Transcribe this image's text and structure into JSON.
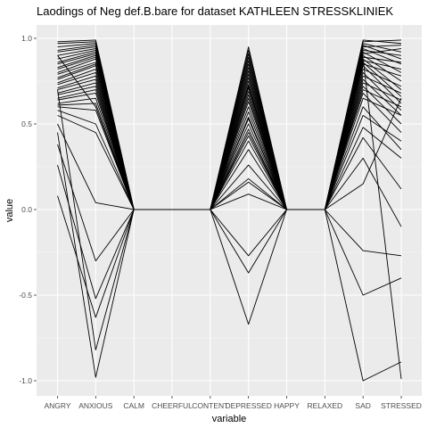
{
  "chart_data": {
    "type": "line",
    "title": "Laodings of Neg def.B.bare for dataset KATHLEEN STRESSKLINIEK",
    "xlabel": "variable",
    "ylabel": "value",
    "categories": [
      "ANGRY",
      "ANXIOUS",
      "CALM",
      "CHEERFUL",
      "CONTENT",
      "DEPRESSED",
      "HAPPY",
      "RELAXED",
      "SAD",
      "STRESSED"
    ],
    "ylim": [
      -1.0,
      1.0
    ],
    "yticks": [
      {
        "value": -1.0,
        "label": "-1.0"
      },
      {
        "value": -0.5,
        "label": "-0.5"
      },
      {
        "value": 0.0,
        "label": "0.0"
      },
      {
        "value": 0.5,
        "label": "0.5"
      },
      {
        "value": 1.0,
        "label": "1.0"
      }
    ],
    "grid": true,
    "line_color": "#000000",
    "series": [
      {
        "values": [
          0.98,
          0.99,
          0,
          0,
          0,
          0.95,
          0,
          0,
          0.99,
          0.97
        ]
      },
      {
        "values": [
          0.97,
          0.98,
          0,
          0,
          0,
          0.93,
          0,
          0,
          0.98,
          0.99
        ]
      },
      {
        "values": [
          0.95,
          0.97,
          0,
          0,
          0,
          0.91,
          0,
          0,
          0.97,
          0.92
        ]
      },
      {
        "values": [
          0.93,
          0.96,
          0,
          0,
          0,
          0.89,
          0,
          0,
          0.96,
          0.88
        ]
      },
      {
        "values": [
          0.92,
          0.95,
          0,
          0,
          0,
          0.87,
          0,
          0,
          0.95,
          0.96
        ]
      },
      {
        "values": [
          0.9,
          0.94,
          0,
          0,
          0,
          0.85,
          0,
          0,
          0.94,
          0.85
        ]
      },
      {
        "values": [
          0.88,
          0.93,
          0,
          0,
          0,
          0.83,
          0,
          0,
          0.93,
          0.9
        ]
      },
      {
        "values": [
          0.86,
          0.92,
          0,
          0,
          0,
          0.81,
          0,
          0,
          0.92,
          0.8
        ]
      },
      {
        "values": [
          0.85,
          0.91,
          0,
          0,
          0,
          0.79,
          0,
          0,
          0.91,
          0.94
        ]
      },
      {
        "values": [
          0.83,
          0.9,
          0,
          0,
          0,
          0.77,
          0,
          0,
          0.9,
          0.75
        ]
      },
      {
        "values": [
          0.82,
          0.89,
          0,
          0,
          0,
          0.75,
          0,
          0,
          0.89,
          0.86
        ]
      },
      {
        "values": [
          0.8,
          0.88,
          0,
          0,
          0,
          0.73,
          0,
          0,
          0.88,
          0.7
        ]
      },
      {
        "values": [
          0.79,
          0.86,
          0,
          0,
          0,
          0.71,
          0,
          0,
          0.87,
          0.82
        ]
      },
      {
        "values": [
          0.77,
          0.85,
          0,
          0,
          0,
          0.69,
          0,
          0,
          0.86,
          0.66
        ]
      },
      {
        "values": [
          0.76,
          0.84,
          0,
          0,
          0,
          0.67,
          0,
          0,
          0.85,
          0.78
        ]
      },
      {
        "values": [
          0.74,
          0.82,
          0,
          0,
          0,
          0.65,
          0,
          0,
          0.84,
          0.62
        ]
      },
      {
        "values": [
          0.73,
          0.8,
          0,
          0,
          0,
          0.63,
          0,
          0,
          0.82,
          0.72
        ]
      },
      {
        "values": [
          0.71,
          0.78,
          0,
          0,
          0,
          0.6,
          0,
          0,
          0.8,
          0.58
        ]
      },
      {
        "values": [
          0.7,
          0.76,
          0,
          0,
          0,
          0.57,
          0,
          0,
          0.78,
          0.68
        ]
      },
      {
        "values": [
          0.68,
          0.74,
          0,
          0,
          0,
          0.54,
          0,
          0,
          0.76,
          0.55
        ]
      },
      {
        "values": [
          0.67,
          0.72,
          0,
          0,
          0,
          0.5,
          0,
          0,
          0.74,
          0.64
        ]
      },
      {
        "values": [
          0.65,
          0.7,
          0,
          0,
          0,
          0.47,
          0,
          0,
          0.72,
          0.5
        ]
      },
      {
        "values": [
          0.64,
          0.68,
          0,
          0,
          0,
          0.45,
          0,
          0,
          0.7,
          0.6
        ]
      },
      {
        "values": [
          0.62,
          0.65,
          0,
          0,
          0,
          0.43,
          0,
          0,
          0.68,
          0.45
        ]
      },
      {
        "values": [
          0.61,
          0.62,
          0,
          0,
          0,
          0.4,
          0,
          0,
          0.65,
          0.55
        ]
      },
      {
        "values": [
          0.6,
          0.58,
          0,
          0,
          0,
          0.35,
          0,
          0,
          0.6,
          0.35
        ]
      },
      {
        "values": [
          0.58,
          0.5,
          0,
          0,
          0,
          0.26,
          0,
          0,
          0.55,
          0.4
        ]
      },
      {
        "values": [
          0.55,
          0.45,
          0,
          0,
          0,
          0.18,
          0,
          0,
          0.48,
          0.3
        ]
      },
      {
        "values": [
          0.5,
          0.04,
          0,
          0,
          0,
          0.16,
          0,
          0,
          0.42,
          0.12
        ]
      },
      {
        "values": [
          0.38,
          -0.3,
          0,
          0,
          0,
          0.09,
          0,
          0,
          0.15,
          0.65
        ]
      },
      {
        "values": [
          0.26,
          -0.52,
          0,
          0,
          0,
          -0.27,
          0,
          0,
          -0.24,
          -0.27
        ]
      },
      {
        "values": [
          0.08,
          -0.63,
          0,
          0,
          0,
          -0.37,
          0,
          0,
          -0.5,
          -0.4
        ]
      },
      {
        "values": [
          0.7,
          -0.82,
          0,
          0,
          0,
          -0.67,
          0,
          0,
          -1.0,
          -0.89
        ]
      },
      {
        "values": [
          0.45,
          -0.98,
          0,
          0,
          0,
          0.53,
          0,
          0,
          0.88,
          -0.99
        ]
      },
      {
        "values": [
          0.9,
          0.6,
          0,
          0,
          0,
          0.72,
          0,
          0,
          0.3,
          -0.1
        ]
      }
    ]
  }
}
